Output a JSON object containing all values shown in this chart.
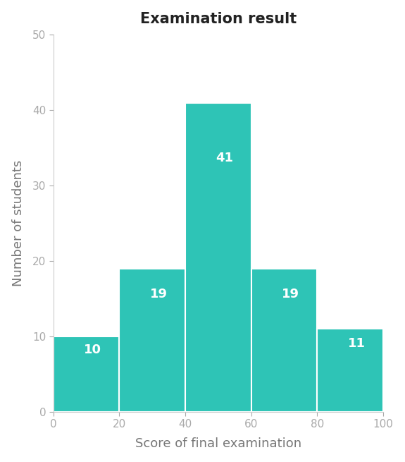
{
  "title": "Examination result",
  "xlabel": "Score of final examination",
  "ylabel": "Number of students",
  "bin_edges": [
    0,
    20,
    40,
    60,
    80,
    100
  ],
  "counts": [
    10,
    19,
    41,
    19,
    11
  ],
  "bar_color": "#2EC4B6",
  "label_color": "#ffffff",
  "background_color": "#ffffff",
  "ylim": [
    0,
    50
  ],
  "yticks": [
    0,
    10,
    20,
    30,
    40,
    50
  ],
  "xticks": [
    0,
    20,
    40,
    60,
    80,
    100
  ],
  "title_fontsize": 15,
  "axis_label_fontsize": 13,
  "tick_fontsize": 11,
  "bar_label_fontsize": 13,
  "tick_color": "#aaaaaa",
  "spine_color": "#cccccc"
}
